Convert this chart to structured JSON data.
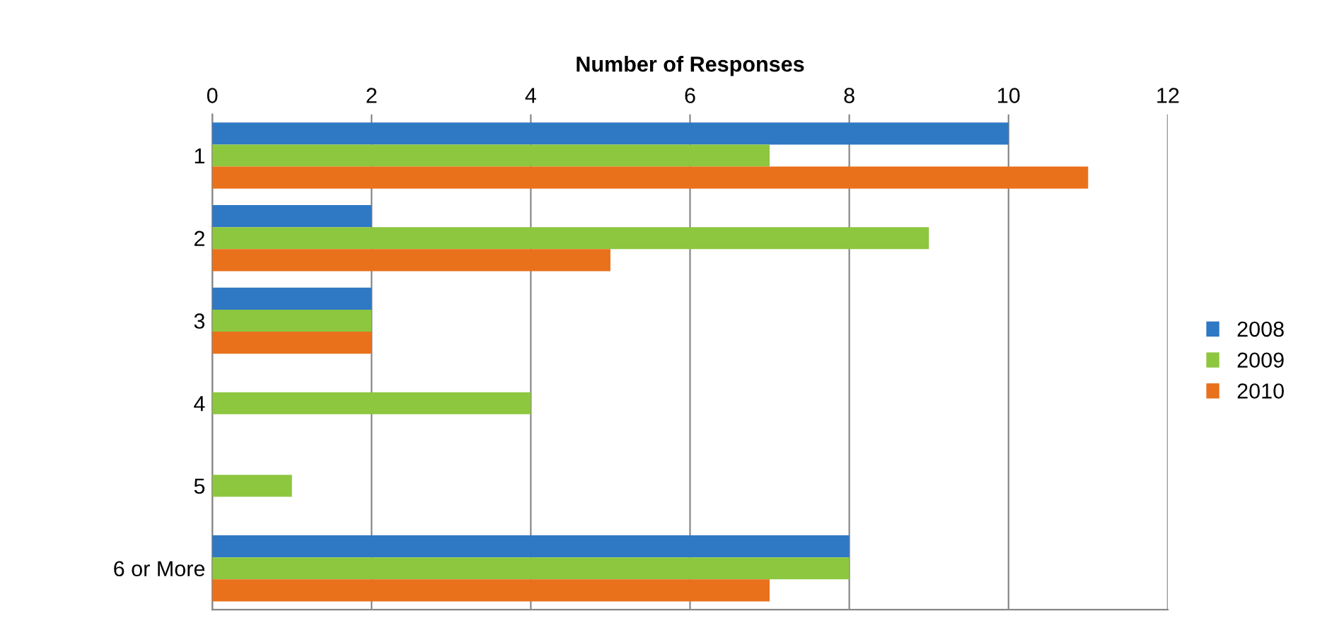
{
  "chart_data": {
    "type": "bar",
    "orientation": "horizontal",
    "xlabel": "Number of Responses",
    "categories": [
      "1",
      "2",
      "3",
      "4",
      "5",
      "6 or More"
    ],
    "series": [
      {
        "name": "2008",
        "color": "#2f78c4",
        "values": [
          10,
          2,
          2,
          0,
          0,
          8
        ]
      },
      {
        "name": "2009",
        "color": "#8dc63f",
        "values": [
          7,
          9,
          2,
          4,
          1,
          8
        ]
      },
      {
        "name": "2010",
        "color": "#e9711c",
        "values": [
          11,
          5,
          2,
          0,
          0,
          7
        ]
      }
    ],
    "xlim": [
      0,
      12
    ],
    "xticks": [
      0,
      2,
      4,
      6,
      8,
      10,
      12
    ],
    "grid": "x",
    "legend": "right"
  }
}
